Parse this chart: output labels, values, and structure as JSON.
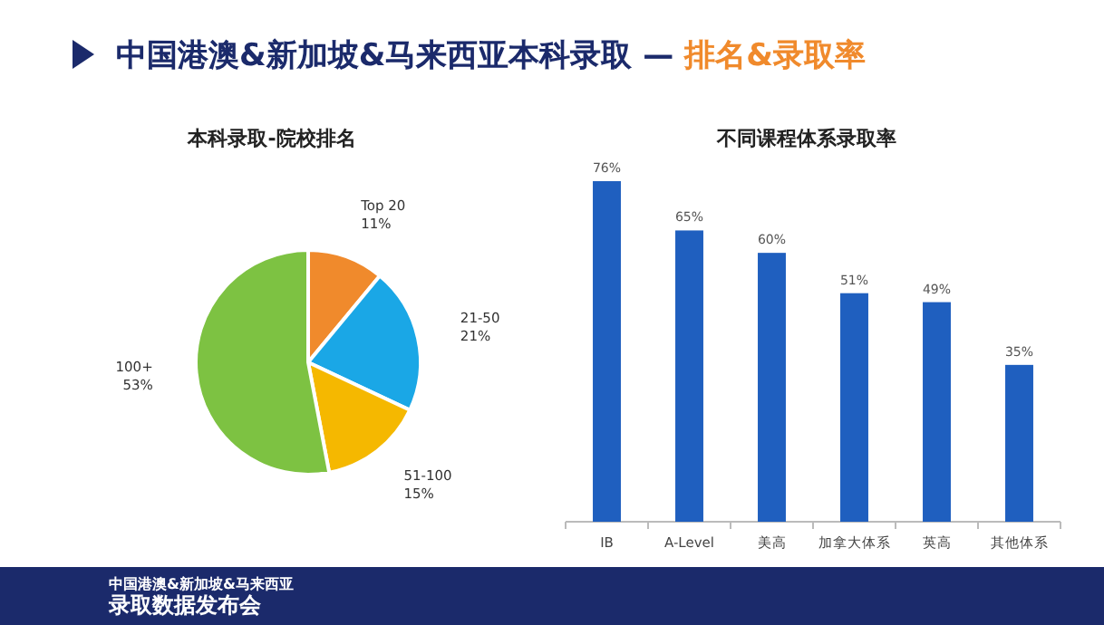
{
  "chart_data": [
    {
      "type": "other",
      "title": "中国港澳&新加坡&马来西亚本科录取 —",
      "subtitle": "排名&录取率",
      "annotations": [
        "中国港澳&新加坡&马来西亚",
        "录取数据发布会"
      ]
    },
    {
      "type": "pie",
      "title": "本科录取-院校排名",
      "categories": [
        "Top 20",
        "21-50",
        "51-100",
        "100+"
      ],
      "values": [
        11,
        21,
        15,
        53
      ],
      "colors": [
        "#f08a2c",
        "#1aa7e6",
        "#f5b800",
        "#7dc242"
      ],
      "value_labels": [
        "11%",
        "21%",
        "15%",
        "53%"
      ]
    },
    {
      "type": "bar",
      "title": "不同课程体系录取率",
      "categories": [
        "IB",
        "A-Level",
        "美高",
        "加拿大体系",
        "英高",
        "其他体系"
      ],
      "values": [
        76,
        65,
        60,
        51,
        49,
        35
      ],
      "color": "#1f5fbf",
      "value_labels": [
        "76%",
        "65%",
        "60%",
        "51%",
        "49%",
        "35%"
      ]
    }
  ]
}
